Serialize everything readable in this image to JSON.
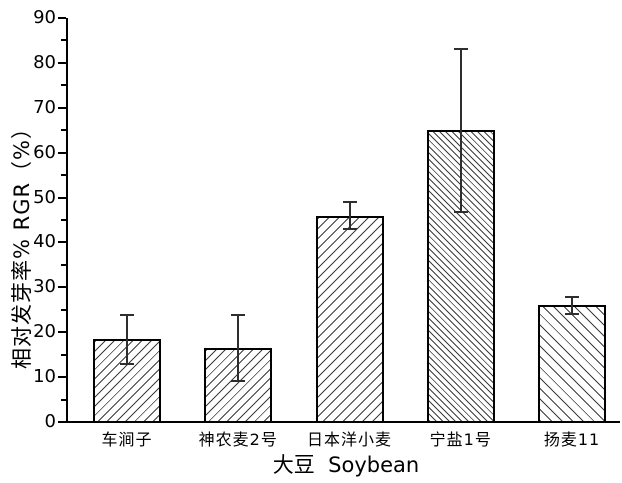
{
  "chart_data": {
    "type": "bar",
    "title": "",
    "xlabel": "大豆  Soybean",
    "ylabel": "相对发芽率% RGR（%）",
    "categories": [
      "车涧子",
      "神农麦2号",
      "日本洋小麦",
      "宁盐1号",
      "扬麦11"
    ],
    "values": [
      18.4,
      16.5,
      46.0,
      65.0,
      26.0
    ],
    "errors": [
      5.5,
      7.3,
      2.9,
      18.2,
      1.9
    ],
    "hatches": [
      {
        "direction": "forward",
        "period": 6.5
      },
      {
        "direction": "forward",
        "period": 6.5
      },
      {
        "direction": "forward",
        "period": 7.0
      },
      {
        "direction": "backward",
        "period": 4.5
      },
      {
        "direction": "backward",
        "period": 7.5
      }
    ],
    "ylim": [
      0,
      90
    ],
    "ytick_step": 10,
    "ytick_minor_step": 5,
    "grid": false,
    "legend_position": "none",
    "colors": {
      "bar_fill": "#ffffff",
      "hatch_line": "#3d3d3d",
      "bar_edge": "#000000",
      "error_bar": "#2e2e2e",
      "axis": "#000000",
      "text": "#000000",
      "background": "#ffffff"
    }
  }
}
